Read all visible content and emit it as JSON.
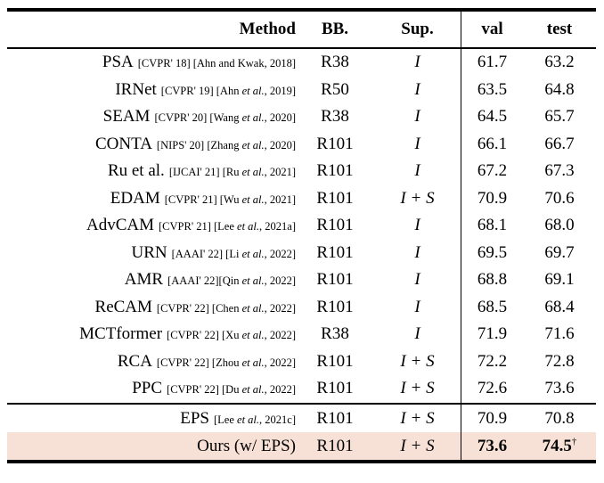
{
  "header": {
    "columns": [
      "Method",
      "BB.",
      "Sup.",
      "val",
      "test"
    ]
  },
  "colors": {
    "highlight_row": "#f7e1d6",
    "rule": "#000000",
    "text": "#000000"
  },
  "table": {
    "rows": [
      {
        "method": "PSA",
        "refs": [
          {
            "t": "[CVPR' 18] [Ahn and Kwak, 2018]"
          }
        ],
        "bb": "R38",
        "sup": "I",
        "val": "61.7",
        "test": "63.2"
      },
      {
        "method": "IRNet",
        "refs": [
          {
            "t": "[CVPR' 19] [Ahn "
          },
          {
            "t": "et al.",
            "i": true
          },
          {
            "t": ", 2019]"
          }
        ],
        "bb": "R50",
        "sup": "I",
        "val": "63.5",
        "test": "64.8"
      },
      {
        "method": "SEAM",
        "refs": [
          {
            "t": "[CVPR' 20] [Wang "
          },
          {
            "t": "et al.",
            "i": true
          },
          {
            "t": ", 2020]"
          }
        ],
        "bb": "R38",
        "sup": "I",
        "val": "64.5",
        "test": "65.7"
      },
      {
        "method": "CONTA",
        "refs": [
          {
            "t": "[NIPS' 20] [Zhang "
          },
          {
            "t": "et al.",
            "i": true
          },
          {
            "t": ", 2020]"
          }
        ],
        "bb": "R101",
        "sup": "I",
        "val": "66.1",
        "test": "66.7"
      },
      {
        "method": "Ru et al.",
        "refs": [
          {
            "t": "[IJCAI' 21] [Ru "
          },
          {
            "t": "et al.",
            "i": true
          },
          {
            "t": ", 2021]"
          }
        ],
        "bb": "R101",
        "sup": "I",
        "val": "67.2",
        "test": "67.3"
      },
      {
        "method": "EDAM",
        "refs": [
          {
            "t": "[CVPR' 21] [Wu "
          },
          {
            "t": "et al.",
            "i": true
          },
          {
            "t": ", 2021]"
          }
        ],
        "bb": "R101",
        "sup": "I + S",
        "val": "70.9",
        "test": "70.6"
      },
      {
        "method": "AdvCAM",
        "refs": [
          {
            "t": "[CVPR' 21] [Lee "
          },
          {
            "t": "et al.",
            "i": true
          },
          {
            "t": ", 2021a]"
          }
        ],
        "bb": "R101",
        "sup": "I",
        "val": "68.1",
        "test": "68.0"
      },
      {
        "method": "URN",
        "refs": [
          {
            "t": "[AAAI' 22] [Li "
          },
          {
            "t": "et al.",
            "i": true
          },
          {
            "t": ", 2022]"
          }
        ],
        "bb": "R101",
        "sup": "I",
        "val": "69.5",
        "test": "69.7"
      },
      {
        "method": "AMR",
        "refs": [
          {
            "t": "[AAAI' 22][Qin "
          },
          {
            "t": "et al.",
            "i": true
          },
          {
            "t": ", 2022]"
          }
        ],
        "bb": "R101",
        "sup": "I",
        "val": "68.8",
        "test": "69.1"
      },
      {
        "method": "ReCAM",
        "refs": [
          {
            "t": "[CVPR' 22] [Chen "
          },
          {
            "t": "et al.",
            "i": true
          },
          {
            "t": ", 2022]"
          }
        ],
        "bb": "R101",
        "sup": "I",
        "val": "68.5",
        "test": "68.4"
      },
      {
        "method": "MCTformer",
        "refs": [
          {
            "t": "[CVPR' 22] [Xu "
          },
          {
            "t": "et al.",
            "i": true
          },
          {
            "t": ", 2022]"
          }
        ],
        "bb": "R38",
        "sup": "I",
        "val": "71.9",
        "test": "71.6"
      },
      {
        "method": "RCA",
        "refs": [
          {
            "t": "[CVPR' 22] [Zhou "
          },
          {
            "t": "et al.",
            "i": true
          },
          {
            "t": ", 2022]"
          }
        ],
        "bb": "R101",
        "sup": "I + S",
        "val": "72.2",
        "test": "72.8"
      },
      {
        "method": "PPC",
        "refs": [
          {
            "t": "[CVPR' 22] [Du "
          },
          {
            "t": "et al.",
            "i": true
          },
          {
            "t": ", 2022]"
          }
        ],
        "bb": "R101",
        "sup": "I + S",
        "val": "72.6",
        "test": "73.6"
      }
    ],
    "bottom_rows": [
      {
        "method": "EPS",
        "refs": [
          {
            "t": "[Lee "
          },
          {
            "t": "et al.",
            "i": true
          },
          {
            "t": ", 2021c]"
          }
        ],
        "bb": "R101",
        "sup": "I + S",
        "val": "70.9",
        "test": "70.8"
      },
      {
        "method": "Ours (w/ EPS)",
        "refs": [],
        "bb": "R101",
        "sup": "I + S",
        "val": "73.6",
        "test": "74.5",
        "bold": true,
        "highlight": true,
        "dagger": "†"
      }
    ]
  }
}
